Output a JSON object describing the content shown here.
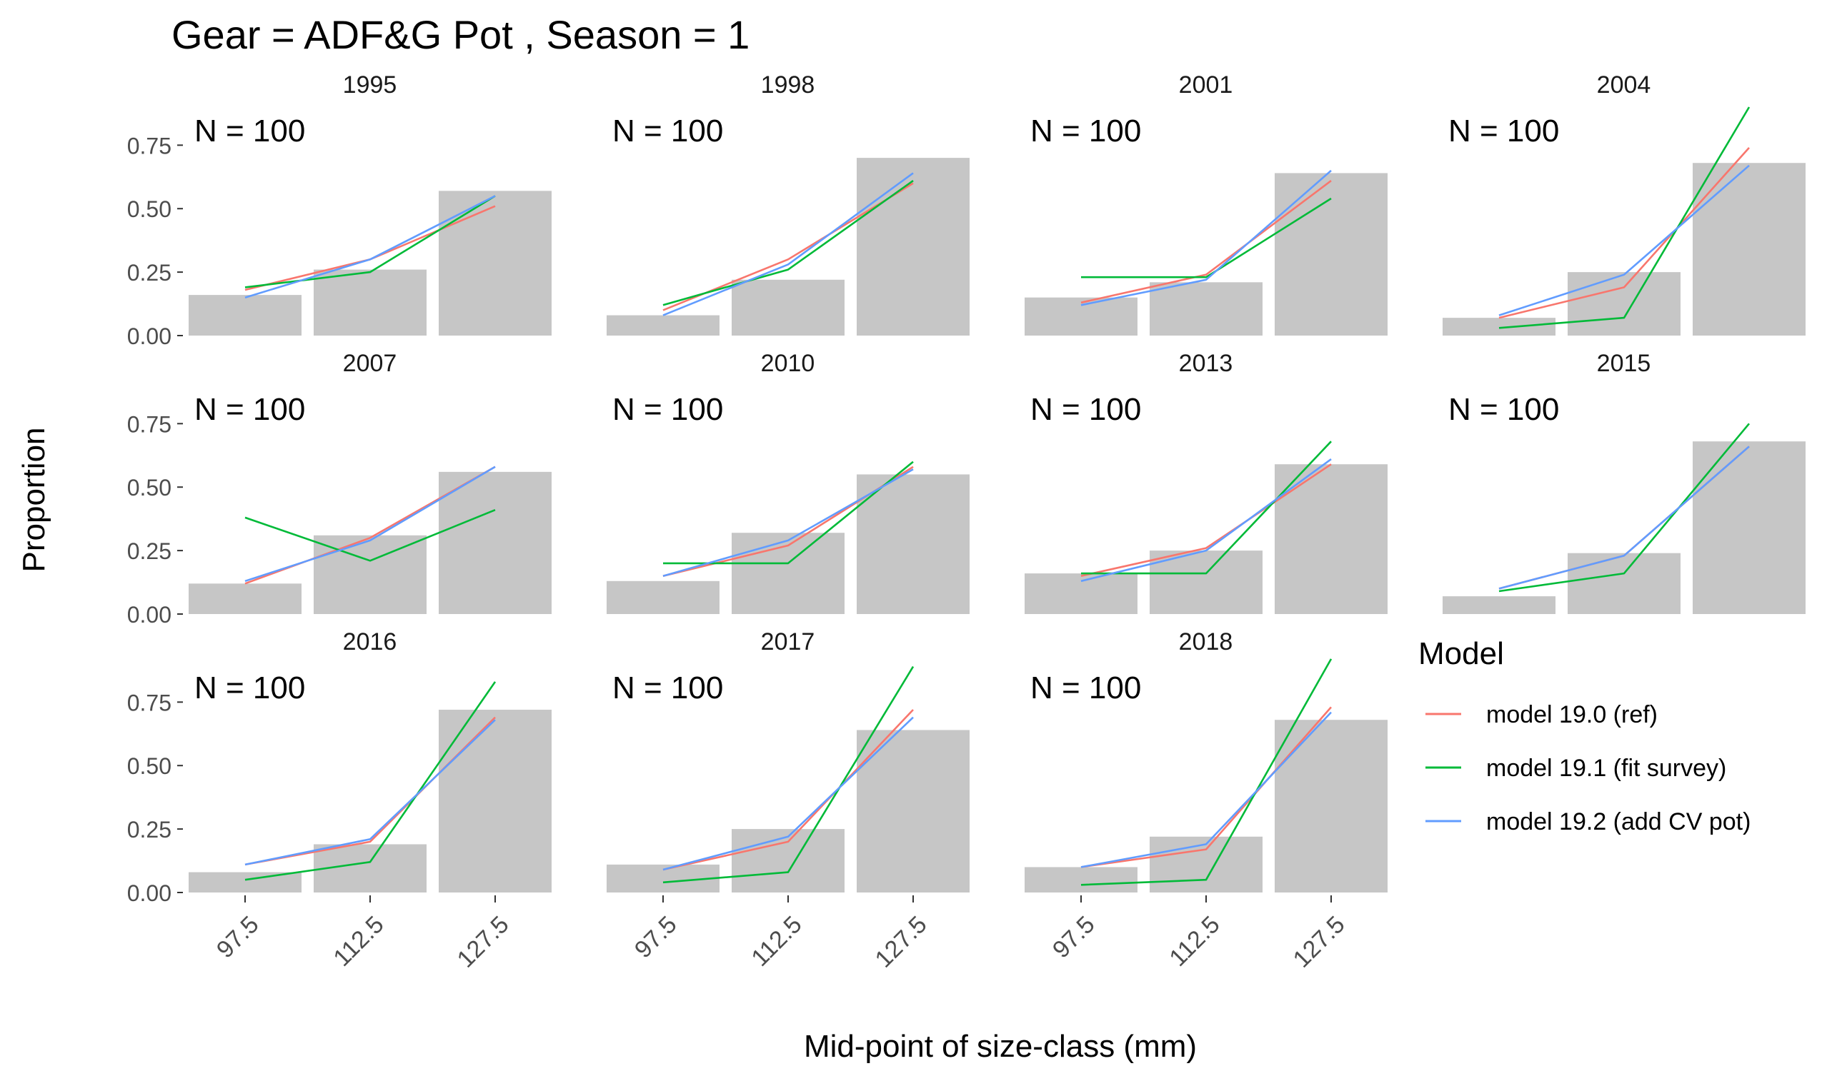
{
  "chart_data": {
    "type": "bar",
    "title": "Gear = ADF&G Pot , Season = 1",
    "xlabel": "Mid-point of size-class (mm)",
    "ylabel": "Proportion",
    "categories": [
      "97.5",
      "112.5",
      "127.5"
    ],
    "ylim": [
      0,
      0.9
    ],
    "yticks": [
      0,
      0.25,
      0.5,
      0.75
    ],
    "ytick_labels": [
      "0.00",
      "0.25",
      "0.50",
      "0.75"
    ],
    "grid": false,
    "legend": {
      "title": "Model",
      "placement": "right",
      "entries": [
        {
          "name": "model 19.0 (ref)",
          "color": "#F8766D"
        },
        {
          "name": "model 19.1 (fit survey)",
          "color": "#00BA38"
        },
        {
          "name": "model 19.2 (add CV pot)",
          "color": "#619CFF"
        }
      ]
    },
    "bar_color": "#C6C6C6",
    "panels": [
      {
        "year": "1995",
        "n_label": "N = 100",
        "observed": [
          0.16,
          0.26,
          0.57
        ],
        "series": [
          [
            0.18,
            0.3,
            0.51
          ],
          [
            0.19,
            0.25,
            0.55
          ],
          [
            0.15,
            0.3,
            0.55
          ]
        ]
      },
      {
        "year": "1998",
        "n_label": "N = 100",
        "observed": [
          0.08,
          0.22,
          0.7
        ],
        "series": [
          [
            0.1,
            0.3,
            0.6
          ],
          [
            0.12,
            0.26,
            0.61
          ],
          [
            0.08,
            0.28,
            0.64
          ]
        ]
      },
      {
        "year": "2001",
        "n_label": "N = 100",
        "observed": [
          0.15,
          0.21,
          0.64
        ],
        "series": [
          [
            0.13,
            0.24,
            0.61
          ],
          [
            0.23,
            0.23,
            0.54
          ],
          [
            0.12,
            0.22,
            0.65
          ]
        ]
      },
      {
        "year": "2004",
        "n_label": "N = 100",
        "observed": [
          0.07,
          0.25,
          0.68
        ],
        "series": [
          [
            0.07,
            0.19,
            0.74
          ],
          [
            0.03,
            0.07,
            0.9
          ],
          [
            0.08,
            0.24,
            0.67
          ]
        ]
      },
      {
        "year": "2007",
        "n_label": "N = 100",
        "observed": [
          0.12,
          0.31,
          0.56
        ],
        "series": [
          [
            0.12,
            0.3,
            0.58
          ],
          [
            0.38,
            0.21,
            0.41
          ],
          [
            0.13,
            0.29,
            0.58
          ]
        ]
      },
      {
        "year": "2010",
        "n_label": "N = 100",
        "observed": [
          0.13,
          0.32,
          0.55
        ],
        "series": [
          [
            0.15,
            0.27,
            0.58
          ],
          [
            0.2,
            0.2,
            0.6
          ],
          [
            0.15,
            0.29,
            0.57
          ]
        ]
      },
      {
        "year": "2013",
        "n_label": "N = 100",
        "observed": [
          0.16,
          0.25,
          0.59
        ],
        "series": [
          [
            0.15,
            0.26,
            0.59
          ],
          [
            0.16,
            0.16,
            0.68
          ],
          [
            0.13,
            0.25,
            0.61
          ]
        ]
      },
      {
        "year": "2015",
        "n_label": "N = 100",
        "observed": [
          0.07,
          0.24,
          0.68
        ],
        "series": [
          [
            0.1,
            0.23,
            0.66
          ],
          [
            0.09,
            0.16,
            0.75
          ],
          [
            0.1,
            0.23,
            0.66
          ]
        ]
      },
      {
        "year": "2016",
        "n_label": "N = 100",
        "observed": [
          0.08,
          0.19,
          0.72
        ],
        "series": [
          [
            0.11,
            0.2,
            0.69
          ],
          [
            0.05,
            0.12,
            0.83
          ],
          [
            0.11,
            0.21,
            0.68
          ]
        ]
      },
      {
        "year": "2017",
        "n_label": "N = 100",
        "observed": [
          0.11,
          0.25,
          0.64
        ],
        "series": [
          [
            0.09,
            0.2,
            0.72
          ],
          [
            0.04,
            0.08,
            0.89
          ],
          [
            0.09,
            0.22,
            0.69
          ]
        ]
      },
      {
        "year": "2018",
        "n_label": "N = 100",
        "observed": [
          0.1,
          0.22,
          0.68
        ],
        "series": [
          [
            0.1,
            0.17,
            0.73
          ],
          [
            0.03,
            0.05,
            0.92
          ],
          [
            0.1,
            0.19,
            0.71
          ]
        ]
      }
    ]
  }
}
